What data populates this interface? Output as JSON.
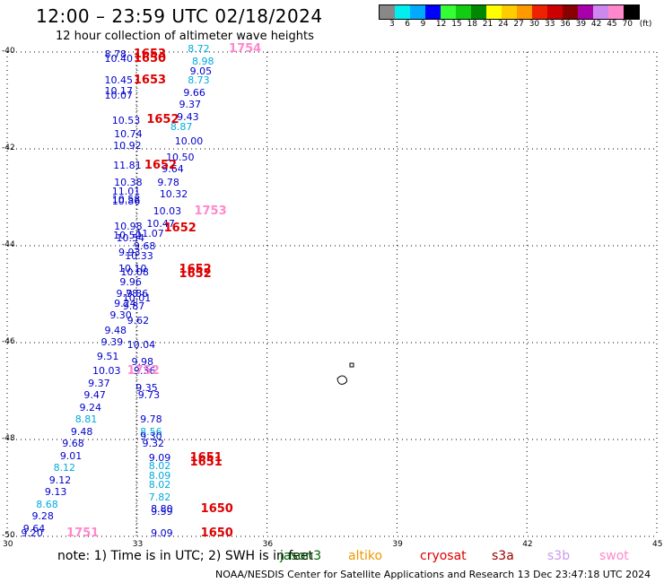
{
  "title": "12:00 – 23:59 UTC 02/18/2024",
  "subtitle": "12 hour collection of altimeter wave heights",
  "legend": {
    "swatches": [
      "#888888",
      "#00eeee",
      "#00aaff",
      "#0000ff",
      "#33ff33",
      "#11cc11",
      "#008800",
      "#ffff00",
      "#ffcc00",
      "#ff9900",
      "#ee2200",
      "#cc0000",
      "#880000",
      "#aa00aa",
      "#cc88ee",
      "#ff88cc",
      "#000000"
    ],
    "labels": [
      "3",
      "6",
      "9",
      "12",
      "15",
      "18",
      "21",
      "24",
      "27",
      "30",
      "33",
      "36",
      "39",
      "42",
      "45",
      "70",
      "(ft)"
    ]
  },
  "axes": {
    "lon_ticks": [
      "30",
      "33",
      "36",
      "39",
      "42",
      "45"
    ],
    "lat_ticks": [
      "-40",
      "-42",
      "-44",
      "-46",
      "-48",
      "-50"
    ]
  },
  "heights": [
    {
      "t": "8.72",
      "lat": -39.95,
      "lon": 34.5,
      "c": "cyan"
    },
    {
      "t": "8.78",
      "lat": -40.05,
      "lon": 32.58,
      "c": "blue"
    },
    {
      "t": "10.40",
      "lat": -40.15,
      "lon": 32.58,
      "c": "blue"
    },
    {
      "t": "8.98",
      "lat": -40.2,
      "lon": 34.6,
      "c": "cyan"
    },
    {
      "t": "9.05",
      "lat": -40.4,
      "lon": 34.55,
      "c": "blue"
    },
    {
      "t": "10.45",
      "lat": -40.6,
      "lon": 32.58,
      "c": "blue"
    },
    {
      "t": "8.73",
      "lat": -40.6,
      "lon": 34.5,
      "c": "cyan"
    },
    {
      "t": "10.17",
      "lat": -40.82,
      "lon": 32.58,
      "c": "blue"
    },
    {
      "t": "10.07",
      "lat": -40.9,
      "lon": 32.58,
      "c": "blue"
    },
    {
      "t": "9.66",
      "lat": -40.85,
      "lon": 34.4,
      "c": "blue"
    },
    {
      "t": "9.37",
      "lat": -41.1,
      "lon": 34.3,
      "c": "blue"
    },
    {
      "t": "9.43",
      "lat": -41.35,
      "lon": 34.25,
      "c": "blue"
    },
    {
      "t": "10.53",
      "lat": -41.42,
      "lon": 32.75,
      "c": "blue"
    },
    {
      "t": "8.87",
      "lat": -41.55,
      "lon": 34.1,
      "c": "cyan"
    },
    {
      "t": "10.74",
      "lat": -41.7,
      "lon": 32.8,
      "c": "blue"
    },
    {
      "t": "10.00",
      "lat": -41.85,
      "lon": 34.2,
      "c": "blue"
    },
    {
      "t": "10.92",
      "lat": -41.95,
      "lon": 32.78,
      "c": "blue"
    },
    {
      "t": "10.50",
      "lat": -42.18,
      "lon": 34.0,
      "c": "blue"
    },
    {
      "t": "11.81",
      "lat": -42.35,
      "lon": 32.78,
      "c": "blue"
    },
    {
      "t": "9.64",
      "lat": -42.42,
      "lon": 33.9,
      "c": "blue"
    },
    {
      "t": "10.38",
      "lat": -42.7,
      "lon": 32.8,
      "c": "blue"
    },
    {
      "t": "9.78",
      "lat": -42.7,
      "lon": 33.8,
      "c": "blue"
    },
    {
      "t": "11.01",
      "lat": -42.88,
      "lon": 32.75,
      "c": "blue"
    },
    {
      "t": "10.32",
      "lat": -42.95,
      "lon": 33.85,
      "c": "blue"
    },
    {
      "t": "10.58",
      "lat": -43.05,
      "lon": 32.75,
      "c": "blue"
    },
    {
      "t": "10.86",
      "lat": -43.1,
      "lon": 32.75,
      "c": "blue"
    },
    {
      "t": "10.03",
      "lat": -43.3,
      "lon": 33.7,
      "c": "blue"
    },
    {
      "t": "10.47",
      "lat": -43.55,
      "lon": 33.55,
      "c": "blue"
    },
    {
      "t": "10.98",
      "lat": -43.62,
      "lon": 32.8,
      "c": "blue"
    },
    {
      "t": "11.07",
      "lat": -43.75,
      "lon": 33.3,
      "c": "blue"
    },
    {
      "t": "10.50",
      "lat": -43.8,
      "lon": 32.78,
      "c": "blue"
    },
    {
      "t": "10.54",
      "lat": -43.85,
      "lon": 32.85,
      "c": "blue"
    },
    {
      "t": "9.68",
      "lat": -44.02,
      "lon": 33.25,
      "c": "blue"
    },
    {
      "t": "9.93",
      "lat": -44.15,
      "lon": 32.9,
      "c": "blue"
    },
    {
      "t": "10.33",
      "lat": -44.22,
      "lon": 33.05,
      "c": "blue"
    },
    {
      "t": "10.10",
      "lat": -44.48,
      "lon": 32.9,
      "c": "blue"
    },
    {
      "t": "10.08",
      "lat": -44.55,
      "lon": 32.95,
      "c": "blue"
    },
    {
      "t": "9.96",
      "lat": -44.75,
      "lon": 32.93,
      "c": "blue"
    },
    {
      "t": "9.78",
      "lat": -45.0,
      "lon": 32.85,
      "c": "blue"
    },
    {
      "t": "9.86",
      "lat": -45.0,
      "lon": 33.08,
      "c": "blue"
    },
    {
      "t": "10.01",
      "lat": -45.1,
      "lon": 33.0,
      "c": "blue"
    },
    {
      "t": "9.24",
      "lat": -45.2,
      "lon": 32.8,
      "c": "blue"
    },
    {
      "t": "9.87",
      "lat": -45.25,
      "lon": 33.0,
      "c": "blue"
    },
    {
      "t": "9.30",
      "lat": -45.45,
      "lon": 32.7,
      "c": "blue"
    },
    {
      "t": "9.62",
      "lat": -45.55,
      "lon": 33.1,
      "c": "blue"
    },
    {
      "t": "9.48",
      "lat": -45.75,
      "lon": 32.58,
      "c": "blue"
    },
    {
      "t": "9.39",
      "lat": -46.0,
      "lon": 32.5,
      "c": "blue"
    },
    {
      "t": "10.04",
      "lat": -46.05,
      "lon": 33.1,
      "c": "blue"
    },
    {
      "t": "9.51",
      "lat": -46.3,
      "lon": 32.4,
      "c": "blue"
    },
    {
      "t": "9.98",
      "lat": -46.4,
      "lon": 33.2,
      "c": "blue"
    },
    {
      "t": "10.03",
      "lat": -46.6,
      "lon": 32.3,
      "c": "blue"
    },
    {
      "t": "9.36",
      "lat": -46.6,
      "lon": 33.25,
      "c": "blue"
    },
    {
      "t": "9.37",
      "lat": -46.85,
      "lon": 32.2,
      "c": "blue"
    },
    {
      "t": "9.35",
      "lat": -46.95,
      "lon": 33.3,
      "c": "blue"
    },
    {
      "t": "9.47",
      "lat": -47.1,
      "lon": 32.1,
      "c": "blue"
    },
    {
      "t": "9.73",
      "lat": -47.1,
      "lon": 33.35,
      "c": "blue"
    },
    {
      "t": "9.24",
      "lat": -47.35,
      "lon": 32.0,
      "c": "blue"
    },
    {
      "t": "9.78",
      "lat": -47.6,
      "lon": 33.4,
      "c": "blue"
    },
    {
      "t": "8.81",
      "lat": -47.6,
      "lon": 31.9,
      "c": "cyan"
    },
    {
      "t": "9.48",
      "lat": -47.85,
      "lon": 31.8,
      "c": "blue"
    },
    {
      "t": "8.56",
      "lat": -47.85,
      "lon": 33.4,
      "c": "cyan"
    },
    {
      "t": "9.30",
      "lat": -47.95,
      "lon": 33.4,
      "c": "blue"
    },
    {
      "t": "9.68",
      "lat": -48.1,
      "lon": 31.6,
      "c": "blue"
    },
    {
      "t": "9.32",
      "lat": -48.1,
      "lon": 33.45,
      "c": "blue"
    },
    {
      "t": "9.01",
      "lat": -48.35,
      "lon": 31.55,
      "c": "blue"
    },
    {
      "t": "9.09",
      "lat": -48.38,
      "lon": 33.6,
      "c": "blue"
    },
    {
      "t": "8.12",
      "lat": -48.6,
      "lon": 31.4,
      "c": "cyan"
    },
    {
      "t": "8.02",
      "lat": -48.55,
      "lon": 33.6,
      "c": "cyan"
    },
    {
      "t": "8.09",
      "lat": -48.75,
      "lon": 33.6,
      "c": "cyan"
    },
    {
      "t": "9.12",
      "lat": -48.85,
      "lon": 31.3,
      "c": "blue"
    },
    {
      "t": "8.02",
      "lat": -48.95,
      "lon": 33.6,
      "c": "cyan"
    },
    {
      "t": "9.13",
      "lat": -49.1,
      "lon": 31.2,
      "c": "blue"
    },
    {
      "t": "7.82",
      "lat": -49.2,
      "lon": 33.6,
      "c": "cyan"
    },
    {
      "t": "8.68",
      "lat": -49.35,
      "lon": 31.0,
      "c": "cyan"
    },
    {
      "t": "8.80",
      "lat": -49.45,
      "lon": 33.65,
      "c": "blue"
    },
    {
      "t": "9.59",
      "lat": -49.5,
      "lon": 33.65,
      "c": "blue"
    },
    {
      "t": "9.28",
      "lat": -49.6,
      "lon": 30.9,
      "c": "blue"
    },
    {
      "t": "9.64",
      "lat": -49.85,
      "lon": 30.7,
      "c": "blue"
    },
    {
      "t": "9.20",
      "lat": -49.95,
      "lon": 30.65,
      "c": "blue"
    },
    {
      "t": "9.09",
      "lat": -49.95,
      "lon": 33.65,
      "c": "blue"
    }
  ],
  "passes": [
    {
      "t": "1754",
      "lat": -39.95,
      "lon": 35.45,
      "c": "pink"
    },
    {
      "t": "1653",
      "lat": -40.05,
      "lon": 33.25,
      "c": "red"
    },
    {
      "t": "1650",
      "lat": -40.15,
      "lon": 33.25,
      "c": "red"
    },
    {
      "t": "1653",
      "lat": -40.6,
      "lon": 33.25,
      "c": "red"
    },
    {
      "t": "1652",
      "lat": -41.4,
      "lon": 33.55,
      "c": "red"
    },
    {
      "t": "1652",
      "lat": -42.35,
      "lon": 33.5,
      "c": "red"
    },
    {
      "t": "1753",
      "lat": -43.3,
      "lon": 34.65,
      "c": "pink"
    },
    {
      "t": "1652",
      "lat": -43.65,
      "lon": 33.95,
      "c": "red"
    },
    {
      "t": "1652",
      "lat": -44.5,
      "lon": 34.3,
      "c": "red"
    },
    {
      "t": "1652",
      "lat": -44.6,
      "lon": 34.3,
      "c": "red"
    },
    {
      "t": "1752",
      "lat": -46.6,
      "lon": 33.1,
      "c": "pink"
    },
    {
      "t": "1651",
      "lat": -48.38,
      "lon": 34.55,
      "c": "red"
    },
    {
      "t": "1651",
      "lat": -48.48,
      "lon": 34.55,
      "c": "red"
    },
    {
      "t": "1650",
      "lat": -49.45,
      "lon": 34.8,
      "c": "red"
    },
    {
      "t": "1650",
      "lat": -49.95,
      "lon": 34.8,
      "c": "red"
    },
    {
      "t": "1751",
      "lat": -49.95,
      "lon": 31.7,
      "c": "pink"
    }
  ],
  "note_text": "note:  1) Time is in UTC; 2) SWH is in feet",
  "satellites": [
    {
      "name": "jason3",
      "color": "#006600"
    },
    {
      "name": "altiko",
      "color": "#ee9900"
    },
    {
      "name": "cryosat",
      "color": "#dd0000"
    },
    {
      "name": "s3a",
      "color": "#990000"
    },
    {
      "name": "s3b",
      "color": "#cc99ee"
    },
    {
      "name": "swot",
      "color": "#ff88cc"
    }
  ],
  "credit": "NOAA/NESDIS Center for Satellite Applications and Research     13 Dec 23:47:18 UTC 2024"
}
